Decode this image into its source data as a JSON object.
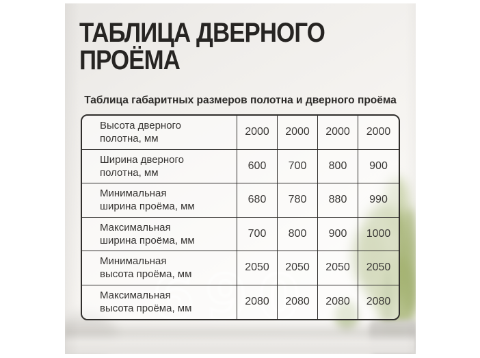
{
  "header": {
    "title_line1": "ТАБЛИЦА ДВЕРНОГО",
    "title_line2": "ПРОЁМА"
  },
  "table": {
    "caption": "Таблица габаритных размеров полотна и дверного проёма",
    "rows": [
      {
        "label_line1": "Высота дверного",
        "label_line2": "полотна, мм",
        "values": [
          "2000",
          "2000",
          "2000",
          "2000"
        ]
      },
      {
        "label_line1": "Ширина дверного",
        "label_line2": "полотна, мм",
        "values": [
          "600",
          "700",
          "800",
          "900"
        ]
      },
      {
        "label_line1": "Минимальная",
        "label_line2": "ширина проёма, мм",
        "values": [
          "680",
          "780",
          "880",
          "990"
        ]
      },
      {
        "label_line1": "Максимальная",
        "label_line2": "ширина проёма, мм",
        "values": [
          "700",
          "800",
          "900",
          "1000"
        ]
      },
      {
        "label_line1": "Минимальная",
        "label_line2": "высота проёма, мм",
        "values": [
          "2050",
          "2050",
          "2050",
          "2050"
        ]
      },
      {
        "label_line1": "Максимальная",
        "label_line2": "высота проёма, мм",
        "values": [
          "2080",
          "2080",
          "2080",
          "2080"
        ]
      }
    ]
  },
  "watermark": {
    "text": "690"
  },
  "colors": {
    "title_text": "#262422",
    "caption_text": "#2c2a28",
    "table_border": "#2f2d2b",
    "label_text": "#343230",
    "value_text": "#3b3937",
    "plant_green": "#9cab72",
    "wall_light": "#f3f1ee",
    "page_margin": "#ffffff"
  }
}
